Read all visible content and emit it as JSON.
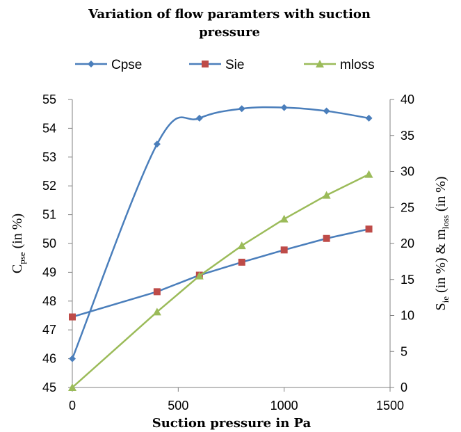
{
  "chart_data": {
    "type": "line",
    "title": "Variation of flow paramters with suction pressure",
    "title_lines": [
      "Variation of flow paramters with suction",
      "pressure"
    ],
    "xlabel": "Suction pressure in Pa",
    "ylabel_left": {
      "main": "C",
      "sub": "pse",
      "rest": " (in %)"
    },
    "ylabel_right": {
      "p1": "S",
      "s1": "ie",
      "p2": " (in %) & m",
      "s2": "loss",
      "p3": " (in %)"
    },
    "xlim": [
      0,
      1500
    ],
    "xticks": [
      0,
      500,
      1000,
      1500
    ],
    "ylim_left": [
      45,
      55
    ],
    "yticks_left": [
      45,
      46,
      47,
      48,
      49,
      50,
      51,
      52,
      53,
      54,
      55
    ],
    "ylim_right": [
      0,
      40
    ],
    "yticks_right": [
      0,
      5,
      10,
      15,
      20,
      25,
      30,
      35,
      40
    ],
    "grid": false,
    "legend_position": "top",
    "series": [
      {
        "name": "Cpse",
        "axis": "left",
        "color": "#4a7ebb",
        "marker": "diamond",
        "smooth": true,
        "x": [
          0,
          400,
          600,
          800,
          1000,
          1200,
          1400
        ],
        "values": [
          46.0,
          53.45,
          54.35,
          54.68,
          54.72,
          54.6,
          54.35
        ]
      },
      {
        "name": "Sie",
        "axis": "right",
        "color": "#be4b48",
        "line_color": "#4a7ebb",
        "marker": "square",
        "smooth": false,
        "x": [
          0,
          400,
          600,
          800,
          1000,
          1200,
          1400
        ],
        "values": [
          9.8,
          13.3,
          15.6,
          17.4,
          19.1,
          20.7,
          22.0
        ]
      },
      {
        "name": "mloss",
        "axis": "right",
        "color": "#9bbb59",
        "marker": "triangle",
        "smooth": false,
        "x": [
          0,
          400,
          600,
          800,
          1000,
          1200,
          1400
        ],
        "values": [
          0.0,
          10.5,
          15.5,
          19.7,
          23.4,
          26.7,
          29.6
        ]
      }
    ]
  }
}
